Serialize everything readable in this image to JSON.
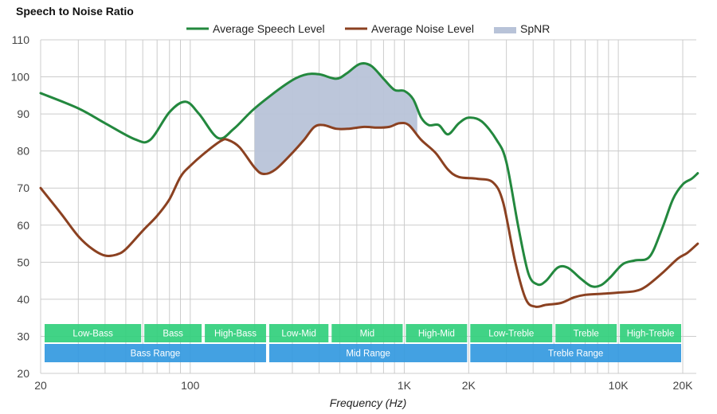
{
  "chart_data": {
    "type": "line",
    "title": "Speech to Noise Ratio",
    "xlabel": "Frequency (Hz)",
    "ylabel": "",
    "xscale": "log",
    "xlim": [
      20,
      23500
    ],
    "ylim": [
      20,
      110
    ],
    "grid": true,
    "legend_position": "top",
    "y_ticks": [
      20,
      30,
      40,
      50,
      60,
      70,
      80,
      90,
      100,
      110
    ],
    "x_ticks": [
      {
        "value": 20,
        "label": "20"
      },
      {
        "value": 100,
        "label": "100"
      },
      {
        "value": 1000,
        "label": "1K"
      },
      {
        "value": 2000,
        "label": "2K"
      },
      {
        "value": 10000,
        "label": "10K"
      },
      {
        "value": 20000,
        "label": "20K"
      }
    ],
    "x_gridlines": [
      20,
      30,
      40,
      50,
      60,
      70,
      80,
      90,
      100,
      200,
      300,
      400,
      500,
      600,
      700,
      800,
      900,
      1000,
      2000,
      3000,
      4000,
      5000,
      6000,
      7000,
      8000,
      9000,
      10000,
      20000
    ],
    "series": [
      {
        "name": "Average Speech Level",
        "color": "#23883e",
        "x": [
          20,
          30,
          40,
          55,
          65,
          80,
          95,
          110,
          135,
          160,
          200,
          280,
          340,
          400,
          480,
          540,
          620,
          700,
          800,
          900,
          1000,
          1100,
          1200,
          1300,
          1450,
          1600,
          1800,
          2000,
          2300,
          2700,
          3000,
          3400,
          3800,
          4200,
          4600,
          5200,
          5800,
          6700,
          7500,
          8300,
          9200,
          10500,
          12000,
          14000,
          16000,
          18000,
          20000,
          22000,
          23500
        ],
        "values": [
          95.6,
          91.5,
          87.5,
          83.2,
          83,
          90.5,
          93.3,
          90,
          83.5,
          86,
          91.5,
          98,
          100.5,
          100.7,
          99.5,
          101,
          103.5,
          103,
          99.5,
          96.5,
          96.2,
          94,
          89,
          87,
          87,
          84.5,
          87.5,
          89,
          88,
          83,
          77,
          60,
          47,
          44,
          45,
          48.5,
          48.5,
          45.5,
          43.5,
          43.8,
          46,
          49.5,
          50.5,
          51.5,
          59,
          67,
          71,
          72.5,
          74
        ]
      },
      {
        "name": "Average Noise Level",
        "color": "#8b4121",
        "x": [
          20,
          25,
          30,
          35,
          40,
          45,
          50,
          60,
          70,
          80,
          90,
          100,
          120,
          140,
          150,
          170,
          200,
          220,
          250,
          300,
          340,
          380,
          420,
          480,
          550,
          650,
          750,
          850,
          950,
          1050,
          1200,
          1400,
          1600,
          1800,
          2200,
          2600,
          2900,
          3300,
          3700,
          4100,
          4600,
          5400,
          6200,
          7000,
          8500,
          10000,
          12000,
          13500,
          16000,
          19000,
          21000,
          23500
        ],
        "values": [
          70,
          63,
          57,
          53.5,
          51.8,
          52,
          53.5,
          58.5,
          62.5,
          67,
          73,
          76,
          80,
          82.8,
          83,
          81,
          75.5,
          73.8,
          75,
          79.5,
          83,
          86.5,
          87,
          86,
          86,
          86.5,
          86.3,
          86.5,
          87.5,
          87,
          83,
          79.5,
          75,
          73,
          72.5,
          71.5,
          66,
          50,
          40,
          38,
          38.5,
          39,
          40.5,
          41.2,
          41.5,
          41.8,
          42.2,
          43.5,
          47,
          51,
          52.5,
          55
        ]
      }
    ],
    "spnr_region": {
      "name": "SpNR",
      "color": "#b8c3d8",
      "x_range": [
        200,
        1150
      ]
    },
    "bands_upper": [
      {
        "label": "Low-Bass",
        "range": [
          20,
          60
        ]
      },
      {
        "label": "Bass",
        "range": [
          60,
          115
        ]
      },
      {
        "label": "High-Bass",
        "range": [
          115,
          230
        ]
      },
      {
        "label": "Low-Mid",
        "range": [
          230,
          450
        ]
      },
      {
        "label": "Mid",
        "range": [
          450,
          1000
        ]
      },
      {
        "label": "High-Mid",
        "range": [
          1000,
          2000
        ]
      },
      {
        "label": "Low-Treble",
        "range": [
          2000,
          5000
        ]
      },
      {
        "label": "Treble",
        "range": [
          5000,
          10000
        ]
      },
      {
        "label": "High-Treble",
        "range": [
          10000,
          20000
        ]
      }
    ],
    "bands_lower": [
      {
        "label": "Bass Range",
        "range": [
          20,
          230
        ]
      },
      {
        "label": "Mid Range",
        "range": [
          230,
          2000
        ]
      },
      {
        "label": "Treble Range",
        "range": [
          2000,
          20000
        ]
      }
    ],
    "band_colors": {
      "upper": "#31cf7c",
      "lower": "#3399e0"
    }
  }
}
